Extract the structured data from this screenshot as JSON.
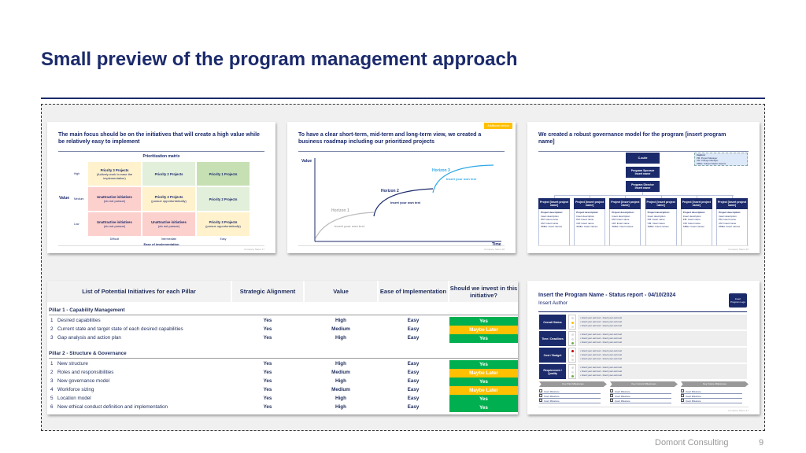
{
  "title": "Small preview of the program management approach",
  "footer": {
    "brand": "Domont Consulting",
    "page": "9"
  },
  "slide1": {
    "title": "The main focus should be on the initiatives that will create a high value while be relatively easy to implement",
    "matrix_title": "Prioritization matrix",
    "y_label": "Value",
    "rows": [
      "High",
      "Medium",
      "Low"
    ],
    "x_label": "Ease of implementation",
    "cols": [
      "Difficult",
      "Intermediate",
      "Easy"
    ],
    "cells": [
      [
        {
          "t": "Priority 3 Projects",
          "s": "(Actively work to ease the implementation)",
          "c": "#fff2cc"
        },
        {
          "t": "Priority 2 Projects",
          "s": "",
          "c": "#e2efda"
        },
        {
          "t": "Priority 1 Projects",
          "s": "",
          "c": "#c6e0b4"
        }
      ],
      [
        {
          "t": "Unattractive initiatives",
          "s": "(do not pursue)",
          "c": "#fcd0cd"
        },
        {
          "t": "Priority 3 Projects",
          "s": "(pursue opportunistically)",
          "c": "#fff2cc"
        },
        {
          "t": "Priority 2 Projects",
          "s": "",
          "c": "#e2efda"
        }
      ],
      [
        {
          "t": "Unattractive initiatives",
          "s": "(do not pursue)",
          "c": "#fcd0cd"
        },
        {
          "t": "Unattractive initiatives",
          "s": "(do not pursue)",
          "c": "#fcd0cd"
        },
        {
          "t": "Priority 3 Projects",
          "s": "(pursue opportunistically)",
          "c": "#fff2cc"
        }
      ]
    ],
    "footer": "Company Name   17"
  },
  "slide2": {
    "badge": "Additional version",
    "title": "To have a clear short-term, mid-term and long-term view, we created a business roadmap including our prioritized projects",
    "y_label": "Value",
    "x_label": "Time",
    "h1": "Horizon 1",
    "h2": "Horizon 2",
    "h3": "Horizon 3",
    "t1": "Insert your own text",
    "t2": "Insert your own text",
    "t3": "Insert your own text",
    "footer": "Company Name   38"
  },
  "slide3": {
    "title": "We created a robust governance model for the program [insert program name]",
    "csuite": "C-suite",
    "sponsor": "Program Sponsor",
    "sponsor_name": "Insert name",
    "director": "Program Director",
    "director_name": "Insert name",
    "caption": [
      "Caption:",
      "PM: Project Manager",
      "CM: Change Manager",
      "SMEs: Subject Matter Experts"
    ],
    "project_header": "Project [insert project name]",
    "project_lines": [
      "Project description:",
      "Insert description",
      "PM: Insert name",
      "CM: Insert name",
      "SMEs: Insert names"
    ],
    "project_count": 6,
    "footer": "Company Name   40"
  },
  "slide4": {
    "headers": [
      "List of Potential Initiatives for each Pillar",
      "Strategic Alignment",
      "Value",
      "Ease of Implementation",
      "Should we invest in this initiative?"
    ],
    "colors": {
      "Yes": "#00b050",
      "Maybe Later": "#ffc000"
    },
    "pillars": [
      {
        "name": "Pillar 1 - Capability Management",
        "rows": [
          [
            "1",
            "Desired capabilities",
            "Yes",
            "High",
            "Easy",
            "Yes"
          ],
          [
            "2",
            "Current state and target state of each desired capabilities",
            "Yes",
            "Medium",
            "Easy",
            "Maybe Later"
          ],
          [
            "3",
            "Gap analysis and action plan",
            "Yes",
            "High",
            "Easy",
            "Yes"
          ]
        ]
      },
      {
        "name": "Pillar 2 - Structure & Governance",
        "rows": [
          [
            "1",
            "New structure",
            "Yes",
            "High",
            "Easy",
            "Yes"
          ],
          [
            "2",
            "Roles and responsibilities",
            "Yes",
            "Medium",
            "Easy",
            "Maybe Later"
          ],
          [
            "3",
            "New governance model",
            "Yes",
            "High",
            "Easy",
            "Yes"
          ],
          [
            "4",
            "Workforce sizing",
            "Yes",
            "Medium",
            "Easy",
            "Maybe Later"
          ],
          [
            "5",
            "Location model",
            "Yes",
            "High",
            "Easy",
            "Yes"
          ],
          [
            "6",
            "New ethical conduct definition and implementation",
            "Yes",
            "High",
            "Easy",
            "Yes"
          ]
        ]
      }
    ]
  },
  "slide5": {
    "title": "Insert the Program Name - Status report - 04/10/2024",
    "author": "Insert Author",
    "logo": "Insert Program Logo",
    "statuses": [
      {
        "label": "Overall Status",
        "light": 1,
        "color": "#ffc000"
      },
      {
        "label": "Time / Deadlines",
        "light": 2,
        "color": "#70ad47"
      },
      {
        "label": "Cost / Budget",
        "light": 0,
        "color": "#c00000"
      },
      {
        "label": "Requirement / Quality",
        "light": 2,
        "color": "#70ad47"
      }
    ],
    "bullet": "• Insert your own text - Insert your own text",
    "milestone_heads": [
      "Key Past Milestones",
      "Key Current Milestones",
      "Key Future Milestones"
    ],
    "milestone_item": "Insert Milestone",
    "footer": "Company Name   47"
  }
}
